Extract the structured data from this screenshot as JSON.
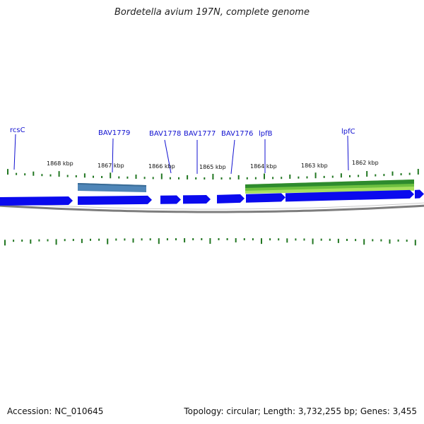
{
  "title": "Bordetella avium 197N, complete genome",
  "footer": {
    "accession": "Accession: NC_010645",
    "summary": "Topology: circular; Length: 3,732,255 bp; Genes: 3,455"
  },
  "colors": {
    "gene": "#0a0aee",
    "gene_label": "#1010d0",
    "tick": "#227722",
    "backbone": "#7d7d7d",
    "feature_blue": "#4f86b8",
    "feature_green_dark": "#2e8b2e",
    "feature_green_light": "#a8e060"
  },
  "tick_labels": [
    "1868 kbp",
    "1867 kbp",
    "1866 kbp",
    "1865 kbp",
    "1864 kbp",
    "1863 kbp",
    "1862 kbp"
  ],
  "gene_labels": [
    "rcsC",
    "BAV1779",
    "BAV1778",
    "BAV1777",
    "BAV1776",
    "lpfB",
    "lpfC"
  ]
}
